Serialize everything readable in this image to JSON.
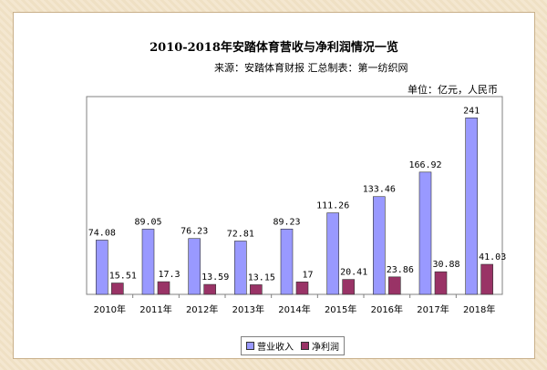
{
  "colors": {
    "revenue": "#9999ff",
    "profit": "#993366",
    "bar_border": "#333333"
  },
  "chart_data": {
    "type": "bar",
    "title": "2010-2018年安踏体育营收与净利润情况一览",
    "source": "来源：安踏体育财报    汇总制表：第一纺织网",
    "unit": "单位：亿元，人民币",
    "categories": [
      "2010年",
      "2011年",
      "2012年",
      "2013年",
      "2014年",
      "2015年",
      "2016年",
      "2017年",
      "2018年"
    ],
    "series": [
      {
        "name": "营业收入",
        "values": [
          74.08,
          89.05,
          76.23,
          72.81,
          89.23,
          111.26,
          133.46,
          166.92,
          241
        ],
        "labels": [
          "74.08",
          "89.05",
          "76.23",
          "72.81",
          "89.23",
          "111.26",
          "133.46",
          "166.92",
          "241"
        ]
      },
      {
        "name": "净利润",
        "values": [
          15.51,
          17.3,
          13.59,
          13.15,
          17,
          20.41,
          23.86,
          30.88,
          41.03
        ],
        "labels": [
          "15.51",
          "17.3",
          "13.59",
          "13.15",
          "17",
          "20.41",
          "23.86",
          "30.88",
          "41.03"
        ]
      }
    ],
    "ylim": [
      0,
      270
    ],
    "grid": false,
    "legend_position": "bottom"
  }
}
